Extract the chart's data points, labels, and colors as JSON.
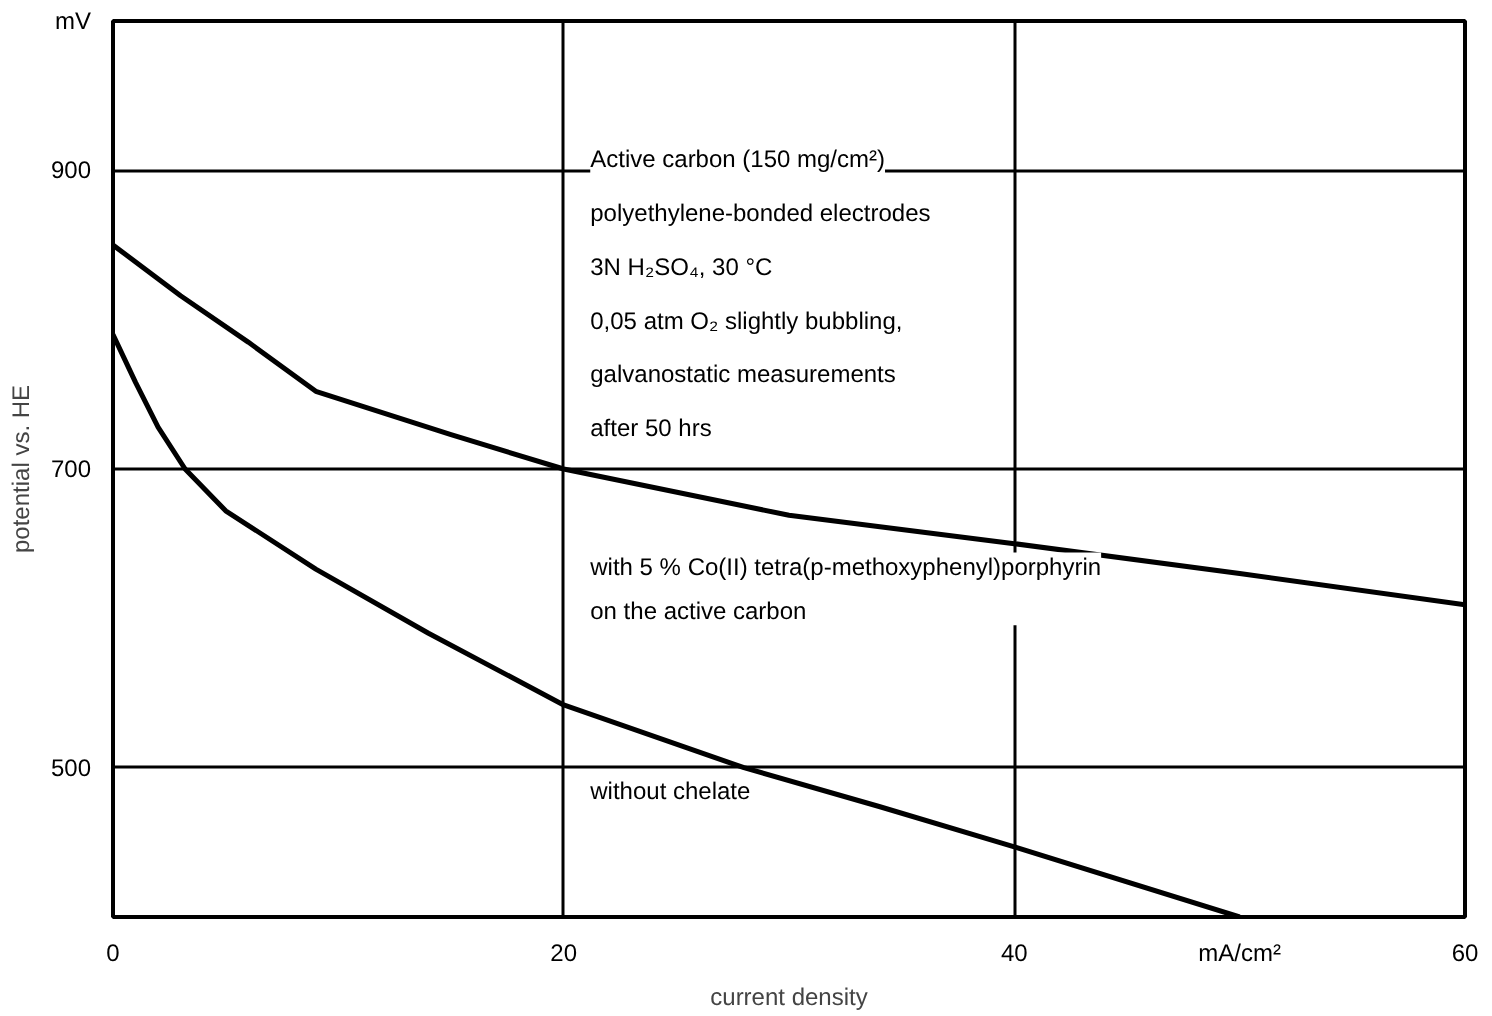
{
  "chart_data": {
    "type": "line",
    "xlabel": "current density",
    "ylabel": "potential vs. HE",
    "xlim": [
      0,
      60
    ],
    "ylim": [
      400,
      1000
    ],
    "xticks": [
      0,
      20,
      40,
      {
        "value": 50,
        "label": "mA/cm²"
      },
      60
    ],
    "yticks": [
      500,
      700,
      900,
      {
        "value": 1000,
        "label": "mV"
      }
    ],
    "grid": true,
    "legend": false,
    "marker": "none",
    "line_style": "solid",
    "annotations": [
      "Active carbon (150 mg/cm²)",
      "polyethylene-bonded electrodes",
      "3N H₂SO₄, 30 °C",
      "0,05 atm O₂ slightly bubbling,",
      "galvanostatic measurements",
      "after 50 hrs"
    ],
    "series": [
      {
        "name": "with 5 % Co(II) tetra(p-methoxyphenyl)porphyrin\non the active carbon",
        "color": "#000000",
        "x": [
          0,
          3,
          6,
          9,
          15,
          20,
          30,
          40,
          50,
          60
        ],
        "values": [
          850,
          816,
          785,
          752,
          723,
          700,
          669,
          650,
          630,
          609
        ]
      },
      {
        "name": "without chelate",
        "color": "#000000",
        "x": [
          0,
          1,
          2,
          3.2,
          5,
          9,
          14,
          20,
          28,
          34,
          40,
          50
        ],
        "values": [
          790,
          758,
          728,
          700,
          672,
          633,
          590,
          542,
          500,
          474,
          447,
          400
        ]
      }
    ]
  }
}
